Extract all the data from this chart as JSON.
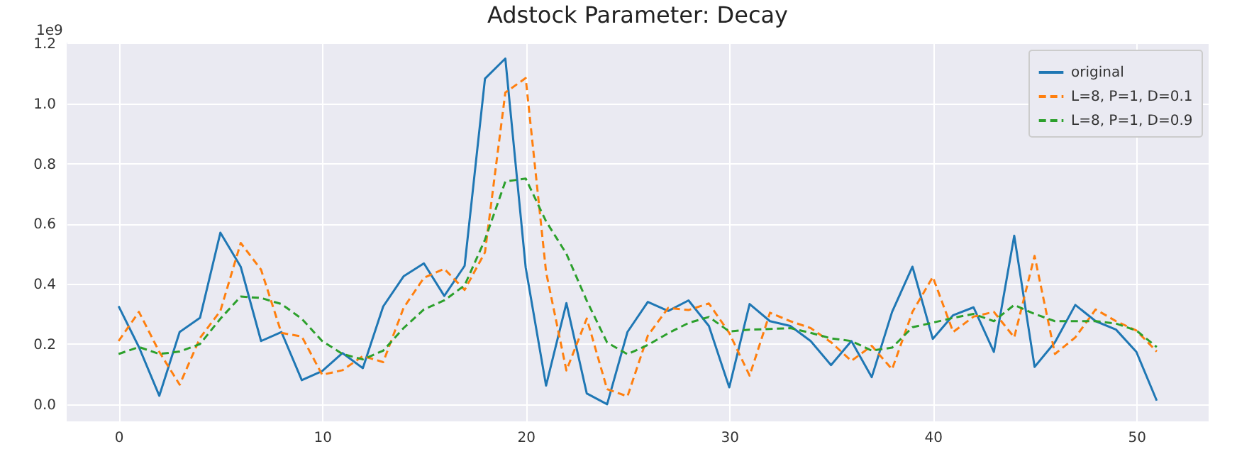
{
  "chart_data": {
    "type": "line",
    "title": "Adstock Parameter: Decay",
    "ylabel": "1e9",
    "x": [
      0,
      1,
      2,
      3,
      4,
      5,
      6,
      7,
      8,
      9,
      10,
      11,
      12,
      13,
      14,
      15,
      16,
      17,
      18,
      19,
      20,
      21,
      22,
      23,
      24,
      25,
      26,
      27,
      28,
      29,
      30,
      31,
      32,
      33,
      34,
      35,
      36,
      37,
      38,
      39,
      40,
      41,
      42,
      43,
      44,
      45,
      46,
      47,
      48,
      49,
      50,
      51
    ],
    "series": [
      {
        "name": "original",
        "color": "#1f77b4",
        "line_style": "solid",
        "values": [
          0.326,
          0.19,
          0.028,
          0.24,
          0.287,
          0.57,
          0.457,
          0.21,
          0.24,
          0.08,
          0.11,
          0.17,
          0.12,
          0.325,
          0.425,
          0.468,
          0.36,
          0.46,
          1.082,
          1.149,
          0.454,
          0.062,
          0.336,
          0.036,
          0.0,
          0.24,
          0.34,
          0.31,
          0.345,
          0.26,
          0.056,
          0.333,
          0.276,
          0.26,
          0.21,
          0.13,
          0.21,
          0.09,
          0.307,
          0.457,
          0.217,
          0.296,
          0.322,
          0.174,
          0.56,
          0.124,
          0.206,
          0.33,
          0.276,
          0.248,
          0.174,
          0.012
        ]
      },
      {
        "name": "L=8, P=1, D=0.1",
        "color": "#ff7f0e",
        "line_style": "dashed",
        "values": [
          0.21,
          0.307,
          0.174,
          0.065,
          0.22,
          0.31,
          0.536,
          0.447,
          0.237,
          0.225,
          0.098,
          0.113,
          0.16,
          0.14,
          0.32,
          0.42,
          0.45,
          0.38,
          0.505,
          1.036,
          1.084,
          0.44,
          0.112,
          0.285,
          0.05,
          0.026,
          0.228,
          0.32,
          0.313,
          0.335,
          0.237,
          0.095,
          0.304,
          0.276,
          0.253,
          0.206,
          0.144,
          0.194,
          0.116,
          0.307,
          0.423,
          0.24,
          0.291,
          0.307,
          0.222,
          0.493,
          0.167,
          0.222,
          0.315,
          0.276,
          0.245,
          0.175
        ]
      },
      {
        "name": "L=8, P=1, D=0.9",
        "color": "#2ca02c",
        "line_style": "dashed",
        "values": [
          0.167,
          0.19,
          0.167,
          0.175,
          0.2,
          0.284,
          0.358,
          0.353,
          0.333,
          0.284,
          0.21,
          0.167,
          0.149,
          0.178,
          0.253,
          0.315,
          0.345,
          0.395,
          0.547,
          0.74,
          0.75,
          0.608,
          0.5,
          0.344,
          0.205,
          0.166,
          0.197,
          0.236,
          0.27,
          0.29,
          0.242,
          0.248,
          0.25,
          0.253,
          0.237,
          0.219,
          0.21,
          0.178,
          0.188,
          0.256,
          0.271,
          0.287,
          0.3,
          0.276,
          0.33,
          0.3,
          0.276,
          0.276,
          0.276,
          0.268,
          0.245,
          0.19
        ]
      }
    ],
    "xlim": [
      -2.55,
      53.55
    ],
    "ylim": [
      -0.057,
      1.202
    ],
    "xticks": [
      0,
      10,
      20,
      30,
      40,
      50
    ],
    "yticks": [
      {
        "value": 0,
        "label": "0.0"
      },
      {
        "value": 0.2,
        "label": "0.2"
      },
      {
        "value": 0.4,
        "label": "0.4"
      },
      {
        "value": 0.6,
        "label": "0.6"
      },
      {
        "value": 0.8,
        "label": "0.8"
      },
      {
        "value": 1.0,
        "label": "1.0"
      },
      {
        "value": 1.2,
        "label": "1.2"
      }
    ],
    "grid": true,
    "legend": "top right"
  }
}
